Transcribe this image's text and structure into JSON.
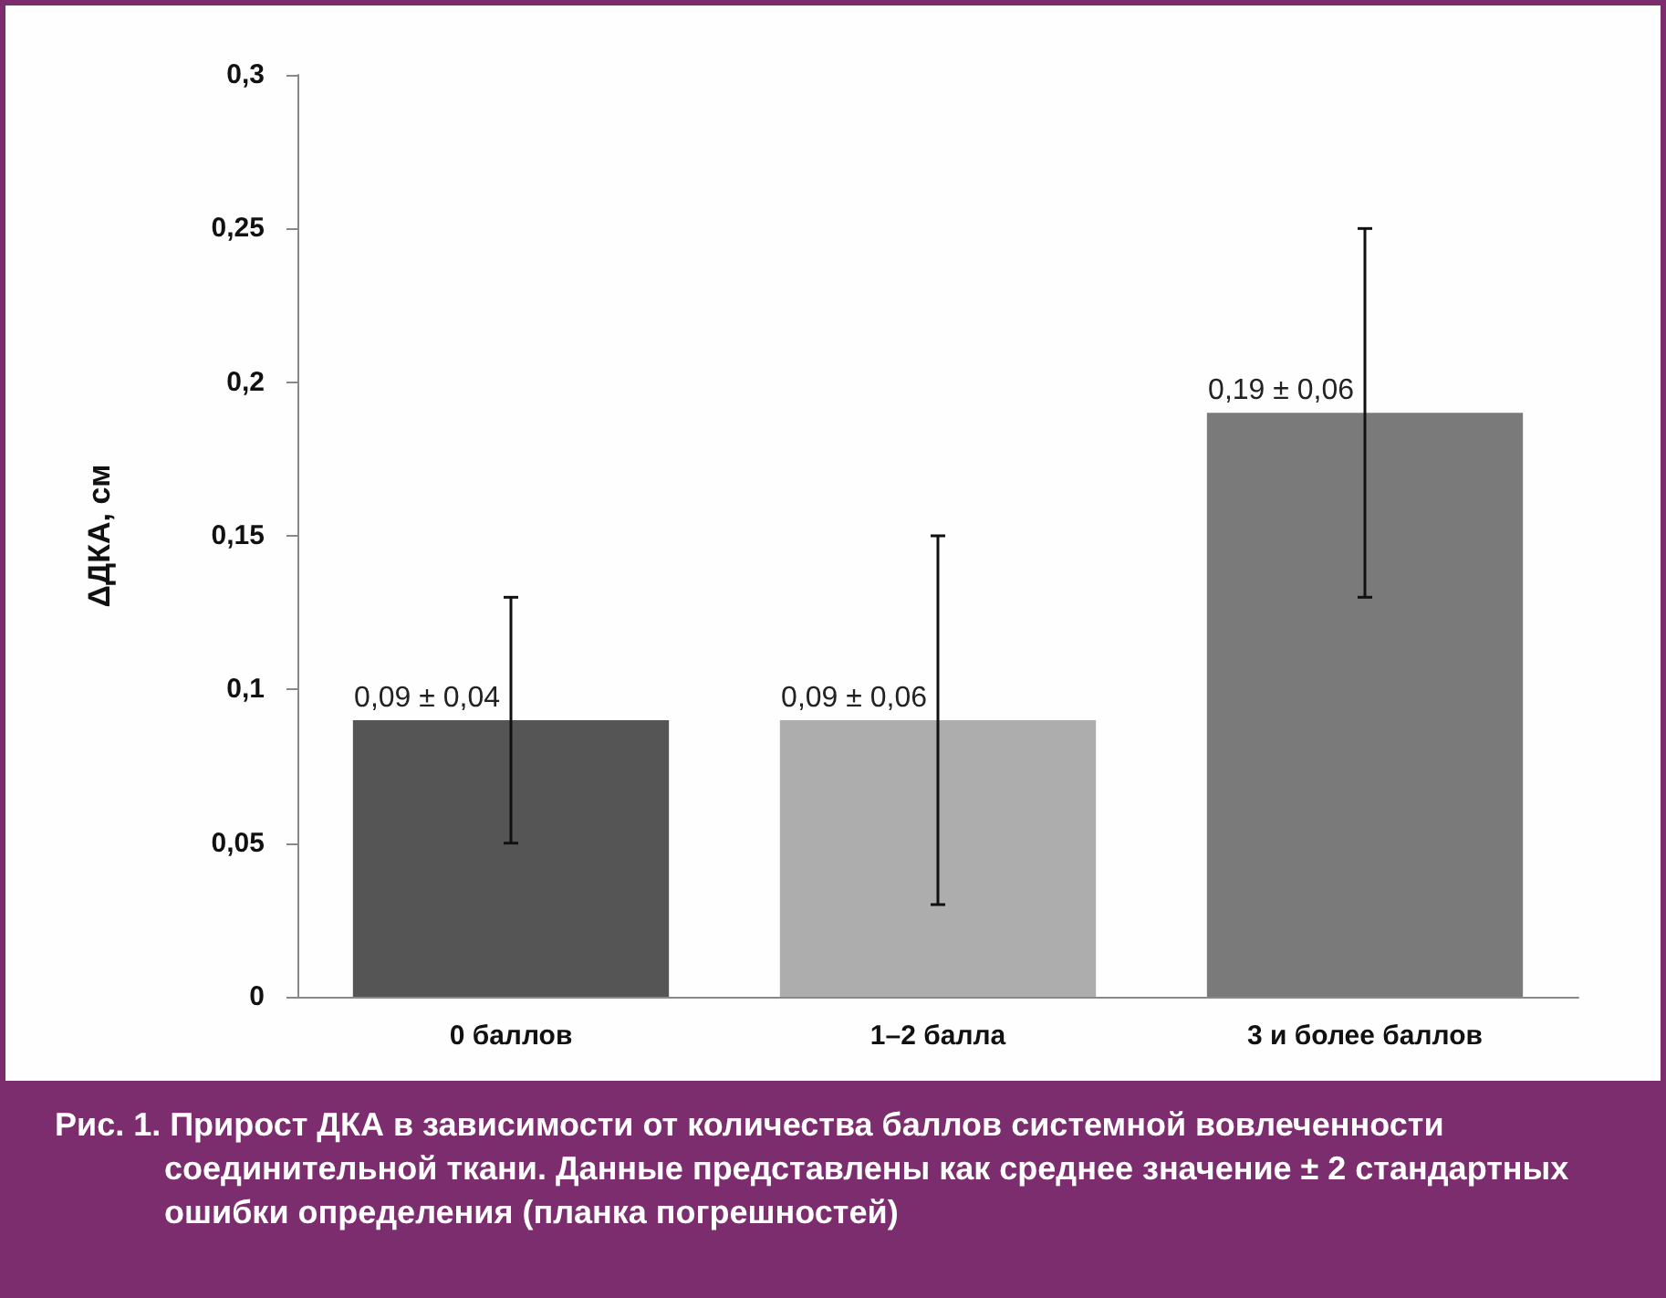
{
  "chart_data": {
    "type": "bar",
    "ylabel": "ΔДКА, см",
    "categories": [
      "0 баллов",
      "1–2 балла",
      "3 и более баллов"
    ],
    "values": [
      0.09,
      0.09,
      0.19
    ],
    "colors": [
      "#555555",
      "#adadad",
      "#7a7a7a"
    ],
    "errors": [
      0.04,
      0.06,
      0.06
    ],
    "value_labels": [
      "0,09 ± 0,04",
      "0,09 ± 0,06",
      "0,19 ± 0,06"
    ],
    "ylim": [
      0,
      0.3
    ],
    "yticks": [
      0,
      {
        "value": 0.05,
        "label": "0,05"
      },
      {
        "value": 0.1,
        "label": "0,1"
      },
      {
        "value": 0.15,
        "label": "0,15"
      },
      {
        "value": 0.2,
        "label": "0,2"
      },
      {
        "value": 0.25,
        "label": "0,25"
      },
      {
        "value": 0.3,
        "label": "0,3"
      }
    ],
    "grid": false,
    "annotations": [
      "Рис. 1. Прирост ДКА в зависимости от количества баллов системной вовлеченности соединительной ткани. Данные представлены как среднее значение ± 2 стандартных ошибки определения (планка погрешностей)"
    ]
  }
}
